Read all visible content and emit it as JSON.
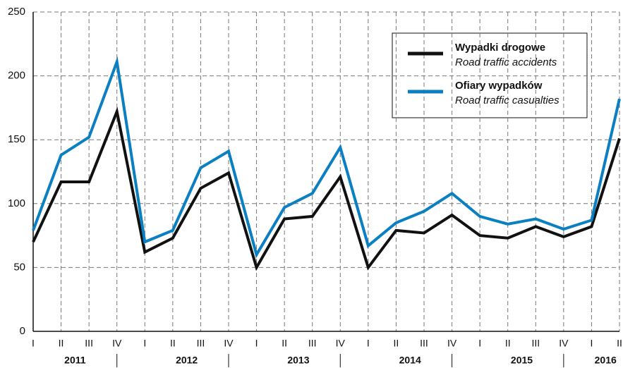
{
  "chart_data": {
    "type": "line",
    "categories": [
      "I",
      "II",
      "III",
      "IV",
      "I",
      "II",
      "III",
      "IV",
      "I",
      "II",
      "III",
      "IV",
      "I",
      "II",
      "III",
      "IV",
      "I",
      "II",
      "III",
      "IV",
      "I",
      "II"
    ],
    "years": [
      "2011",
      "2012",
      "2013",
      "2014",
      "2015",
      "2016"
    ],
    "series": [
      {
        "name": "Wypadki drogowe",
        "name_en": "Road traffic accidents",
        "color": "#111111",
        "values": [
          70,
          117,
          117,
          172,
          62,
          73,
          112,
          124,
          50,
          88,
          90,
          121,
          50,
          79,
          77,
          91,
          75,
          73,
          82,
          74,
          82,
          151
        ]
      },
      {
        "name": "Ofiary wypadków",
        "name_en": "Road traffic casualties",
        "color": "#0a7fc2",
        "values": [
          79,
          138,
          152,
          211,
          70,
          79,
          128,
          141,
          60,
          97,
          108,
          144,
          67,
          85,
          94,
          108,
          90,
          84,
          88,
          80,
          87,
          182
        ]
      }
    ],
    "ylim": [
      0,
      250
    ],
    "yticks": [
      0,
      50,
      100,
      150,
      200,
      250
    ],
    "grid": true
  }
}
